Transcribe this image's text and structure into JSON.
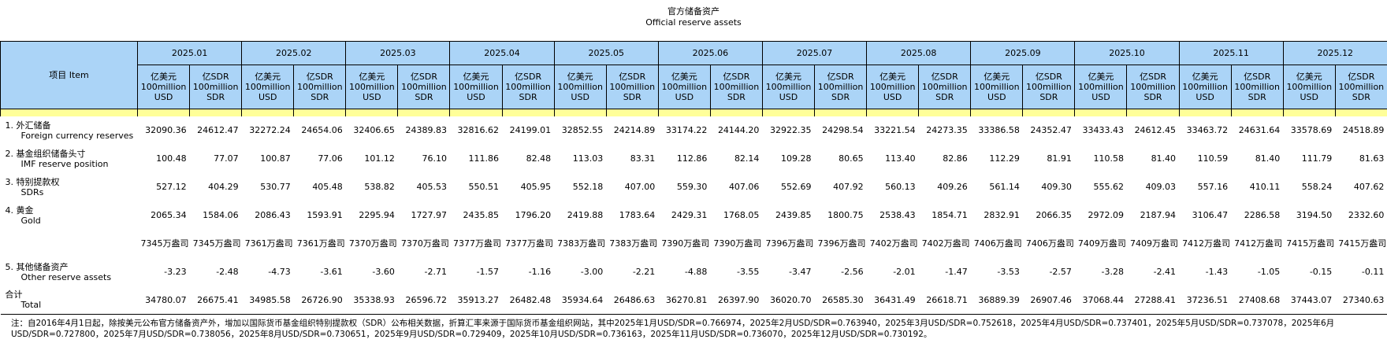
{
  "header": {
    "title": "官方储备资产",
    "subtitle": "Official reserve assets"
  },
  "table": {
    "item_header": "项目 Item",
    "months": [
      "2025.01",
      "2025.02",
      "2025.03",
      "2025.04",
      "2025.05",
      "2025.06",
      "2025.07",
      "2025.08",
      "2025.09",
      "2025.10",
      "2025.11",
      "2025.12"
    ],
    "units": [
      [
        "亿美元",
        "100million",
        "USD"
      ],
      [
        "亿SDR",
        "100million",
        "SDR"
      ]
    ],
    "rows": [
      {
        "label": "1. 外汇储备",
        "label_en": "Foreign currency reserves",
        "usd": [
          "32090.36",
          "32272.24",
          "32406.65",
          "32816.62",
          "32852.55",
          "33174.22",
          "32922.35",
          "33221.54",
          "33386.58",
          "33433.43",
          "33463.72",
          "33578.69"
        ],
        "sdr": [
          "24612.47",
          "24654.06",
          "24389.83",
          "24199.01",
          "24214.89",
          "24144.20",
          "24298.54",
          "24273.35",
          "24352.47",
          "24612.45",
          "24631.64",
          "24518.89"
        ]
      },
      {
        "label": "2. 基金组织储备头寸",
        "label_en": "IMF reserve position",
        "usd": [
          "100.48",
          "100.87",
          "101.12",
          "111.86",
          "113.03",
          "112.86",
          "109.28",
          "113.40",
          "112.29",
          "110.58",
          "110.59",
          "111.79"
        ],
        "sdr": [
          "77.07",
          "77.06",
          "76.10",
          "82.48",
          "83.31",
          "82.14",
          "80.65",
          "82.86",
          "81.91",
          "81.40",
          "81.40",
          "81.63"
        ]
      },
      {
        "label": "3. 特别提款权",
        "label_en": "SDRs",
        "usd": [
          "527.12",
          "530.77",
          "538.82",
          "550.51",
          "552.18",
          "559.30",
          "552.69",
          "560.13",
          "561.14",
          "555.62",
          "557.16",
          "558.24"
        ],
        "sdr": [
          "404.29",
          "405.48",
          "405.53",
          "405.95",
          "407.00",
          "407.06",
          "407.92",
          "409.26",
          "409.30",
          "409.03",
          "410.11",
          "407.62"
        ]
      },
      {
        "label": "4. 黄金",
        "label_en": "Gold",
        "usd": [
          "2065.34",
          "2086.43",
          "2295.94",
          "2435.85",
          "2419.88",
          "2429.31",
          "2439.85",
          "2538.43",
          "2832.91",
          "2972.09",
          "3106.47",
          "3194.50"
        ],
        "sdr": [
          "1584.06",
          "1593.91",
          "1727.97",
          "1796.20",
          "1783.64",
          "1768.05",
          "1800.75",
          "1854.71",
          "2066.35",
          "2187.94",
          "2286.58",
          "2332.60"
        ]
      },
      {
        "ounces": [
          "7345万盎司",
          "7361万盎司",
          "7370万盎司",
          "7377万盎司",
          "7383万盎司",
          "7390万盎司",
          "7396万盎司",
          "7402万盎司",
          "7406万盎司",
          "7409万盎司",
          "7412万盎司",
          "7415万盎司"
        ]
      },
      {
        "label": "5. 其他储备资产",
        "label_en": "Other reserve assets",
        "usd": [
          "-3.23",
          "-4.73",
          "-3.60",
          "-1.57",
          "-3.00",
          "-4.88",
          "-3.47",
          "-2.01",
          "-3.53",
          "-3.28",
          "-1.43",
          "-0.15"
        ],
        "sdr": [
          "-2.48",
          "-3.61",
          "-2.71",
          "-1.16",
          "-2.21",
          "-3.55",
          "-2.56",
          "-1.47",
          "-2.57",
          "-2.41",
          "-1.05",
          "-0.11"
        ]
      },
      {
        "label": "合计",
        "label_en": "Total",
        "usd": [
          "34780.07",
          "34985.58",
          "35338.93",
          "35913.27",
          "35934.64",
          "36270.81",
          "36020.70",
          "36431.49",
          "36889.39",
          "37068.44",
          "37236.51",
          "37443.07"
        ],
        "sdr": [
          "26675.41",
          "26726.90",
          "26596.72",
          "26482.48",
          "26486.63",
          "26397.90",
          "26585.30",
          "26618.71",
          "26907.46",
          "27288.41",
          "27408.68",
          "27340.63"
        ]
      }
    ]
  },
  "note": "注：自2016年4月1日起，除按美元公布官方储备资产外，增加以国际货币基金组织特别提款权（SDR）公布相关数据，折算汇率来源于国际货币基金组织网站，其中2025年1月USD/SDR=0.766974，2025年2月USD/SDR=0.763940，2025年3月USD/SDR=0.752618，2025年4月USD/SDR=0.737401，2025年5月USD/SDR=0.737078，2025年6月USD/SDR=0.727800，2025年7月USD/SDR=0.738056，2025年8月USD/SDR=0.730651，2025年9月USD/SDR=0.729409，2025年10月USD/SDR=0.736163，2025年11月USD/SDR=0.736070，2025年12月USD/SDR=0.730192。"
}
